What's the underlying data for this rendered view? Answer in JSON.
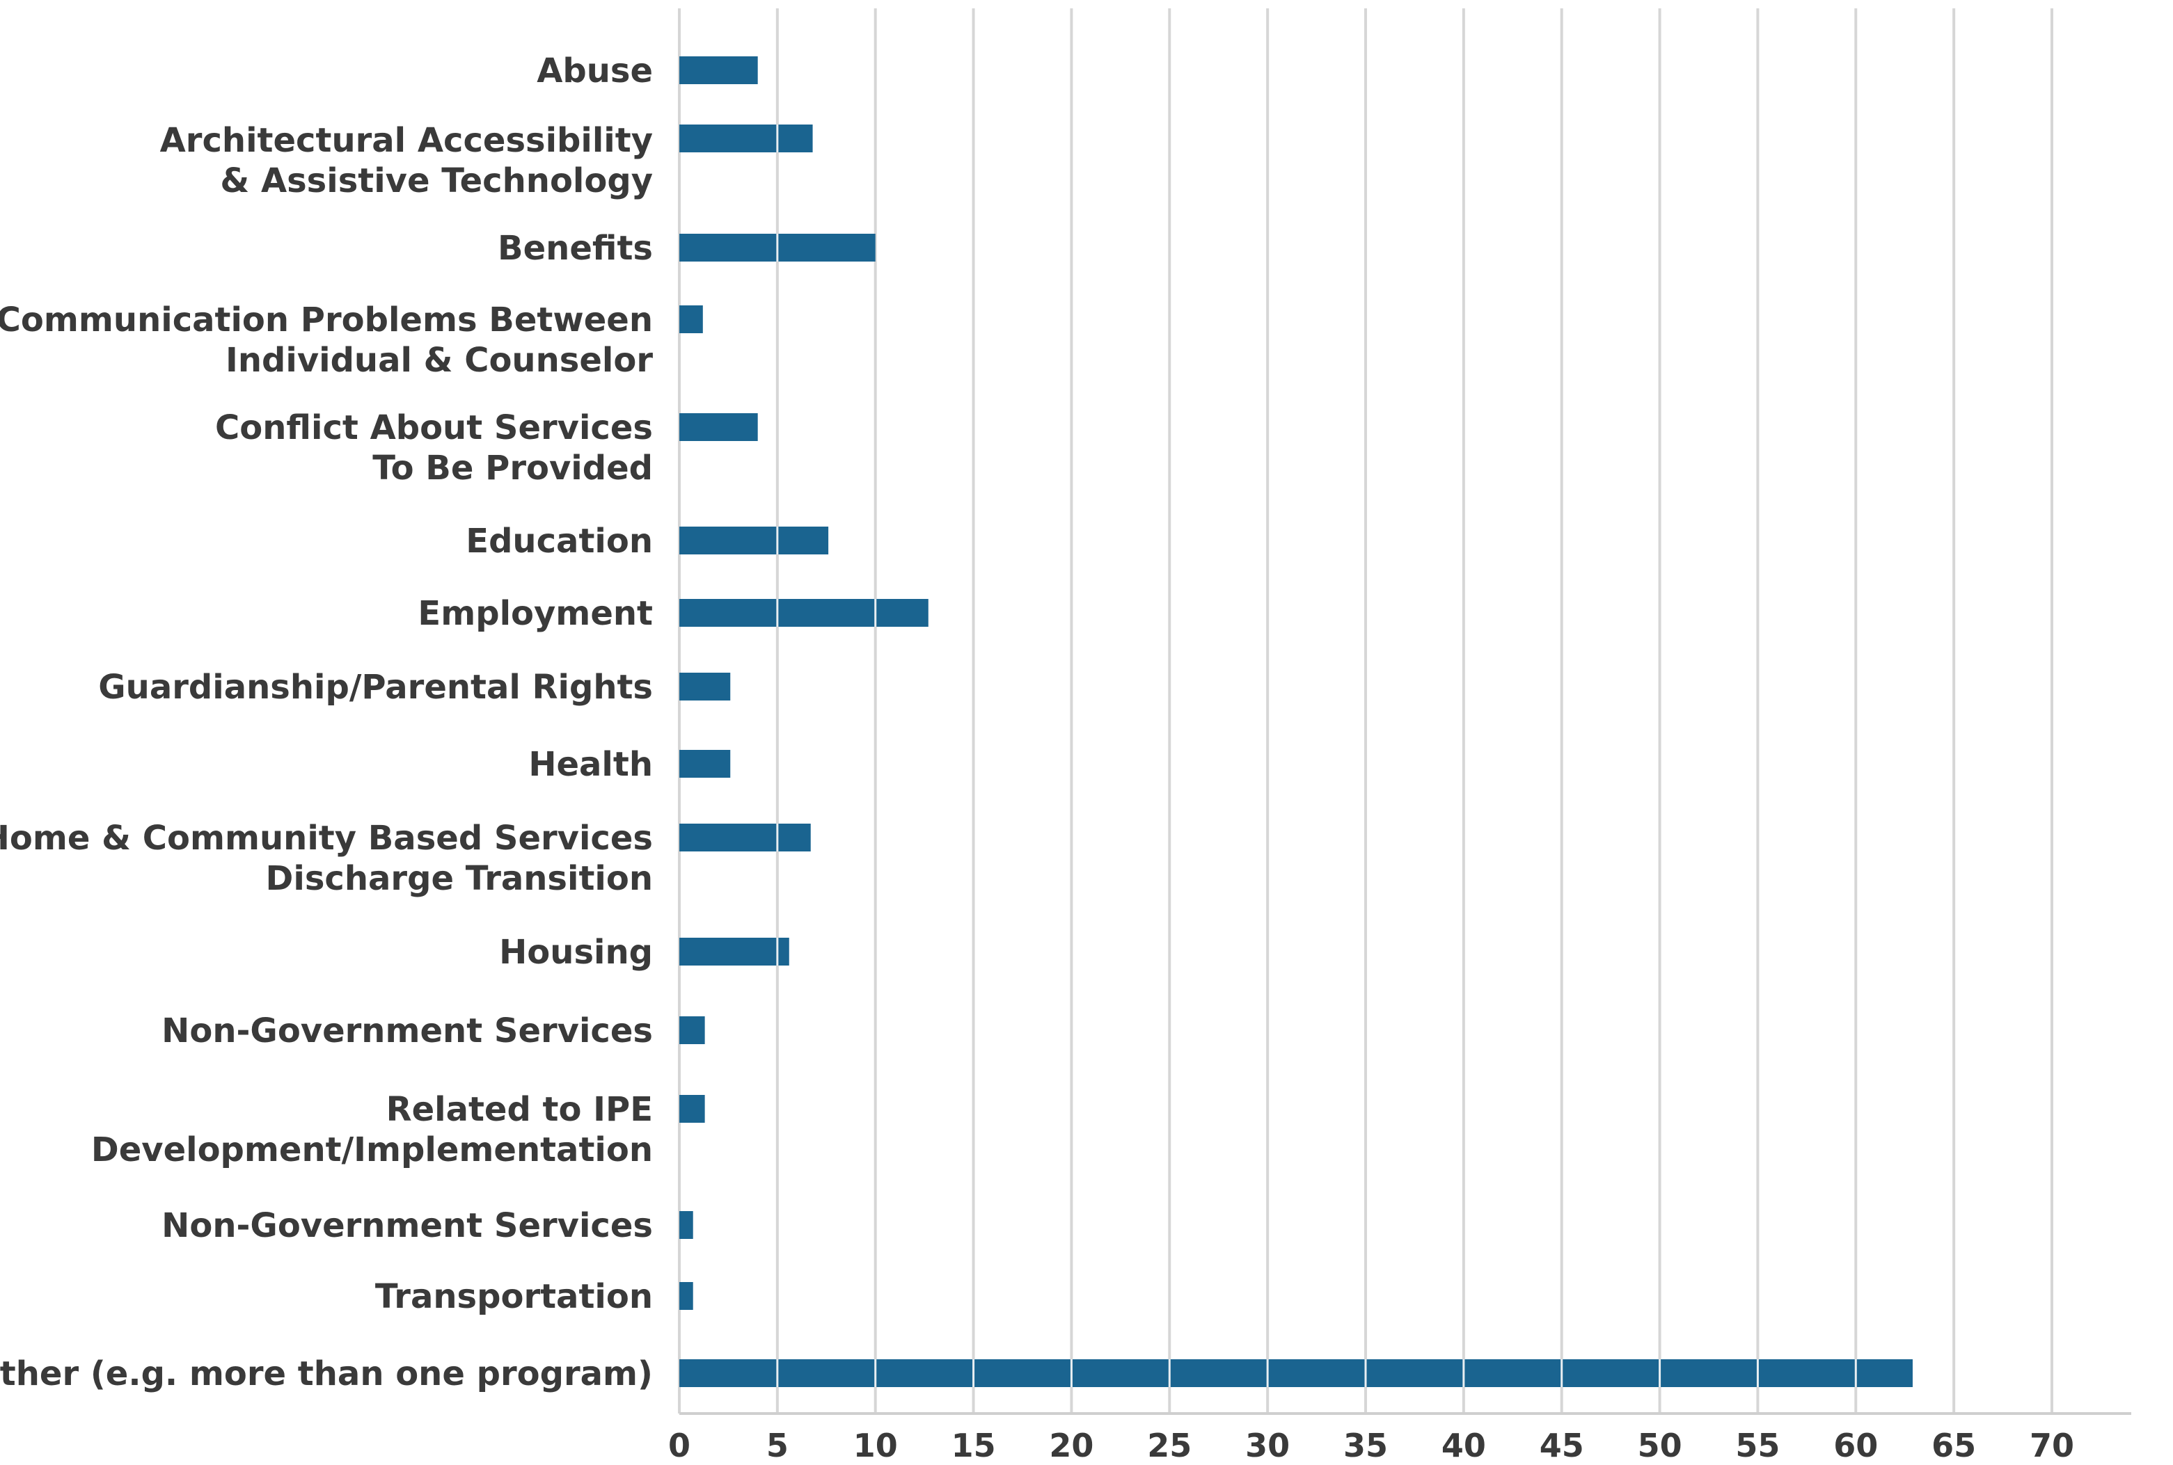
{
  "chart_data": {
    "type": "bar",
    "orientation": "horizontal",
    "title": "",
    "xlabel": "",
    "ylabel": "",
    "xlim": [
      0,
      70
    ],
    "grid": true,
    "bar_color": "#1a6490",
    "x_ticks": [
      "0",
      "5",
      "10",
      "15",
      "20",
      "25",
      "30",
      "35",
      "40",
      "45",
      "50",
      "55",
      "60",
      "65",
      "70"
    ],
    "categories": [
      [
        "Abuse"
      ],
      [
        "Architectural Accessibility",
        "& Assistive Technology"
      ],
      [
        "Benefits"
      ],
      [
        "Communication Problems Between",
        "Individual & Counselor"
      ],
      [
        "Conflict About Services",
        "To Be Provided"
      ],
      [
        "Education"
      ],
      [
        "Employment"
      ],
      [
        "Guardianship/Parental Rights"
      ],
      [
        "Health"
      ],
      [
        "Home & Community Based Services",
        "Discharge Transition"
      ],
      [
        "Housing"
      ],
      [
        "Non-Government Services"
      ],
      [
        "Related to IPE",
        "Development/Implementation"
      ],
      [
        "Non-Government Services"
      ],
      [
        "Transportation"
      ],
      [
        "Other (e.g. more than one program)"
      ]
    ],
    "values": [
      4,
      6.8,
      10,
      1.2,
      4,
      7.6,
      12.7,
      2.6,
      2.6,
      6.7,
      5.6,
      1.3,
      1.3,
      0.7,
      0.7,
      62.9
    ]
  }
}
